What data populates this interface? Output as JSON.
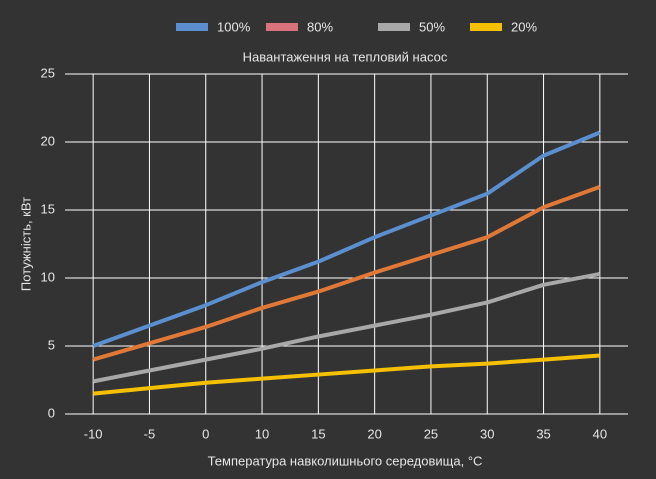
{
  "chart_data": {
    "type": "line",
    "title": "Навантаження на тепловий насос",
    "x_label": "Температура навколишнього середовища, °C",
    "y_label": "Потужність, кВт",
    "categories": [
      "-10",
      "-5",
      "0",
      "10",
      "15",
      "20",
      "25",
      "30",
      "35",
      "40"
    ],
    "series": [
      {
        "name": "100%",
        "color": "#5b8fd0",
        "values": [
          5,
          6.5,
          8,
          9.7,
          11.2,
          13,
          14.6,
          16.2,
          19,
          20.7
        ]
      },
      {
        "name": "80%",
        "color": "#e07838",
        "legend_color": "#d9727a",
        "values": [
          4,
          5.2,
          6.4,
          7.8,
          9,
          10.4,
          11.7,
          13,
          15.2,
          16.7
        ]
      },
      {
        "name": "50%",
        "color": "#a8a8a8",
        "values": [
          2.4,
          3.2,
          4,
          4.8,
          5.7,
          6.5,
          7.3,
          8.2,
          9.5,
          10.3
        ]
      },
      {
        "name": "20%",
        "color": "#f5c000",
        "values": [
          1.5,
          1.9,
          2.3,
          2.6,
          2.9,
          3.2,
          3.5,
          3.7,
          4,
          4.3
        ]
      }
    ],
    "ylim": [
      0,
      25
    ],
    "yticks": [
      0,
      5,
      10,
      15,
      20,
      25
    ],
    "grid": true,
    "legend": "top"
  }
}
